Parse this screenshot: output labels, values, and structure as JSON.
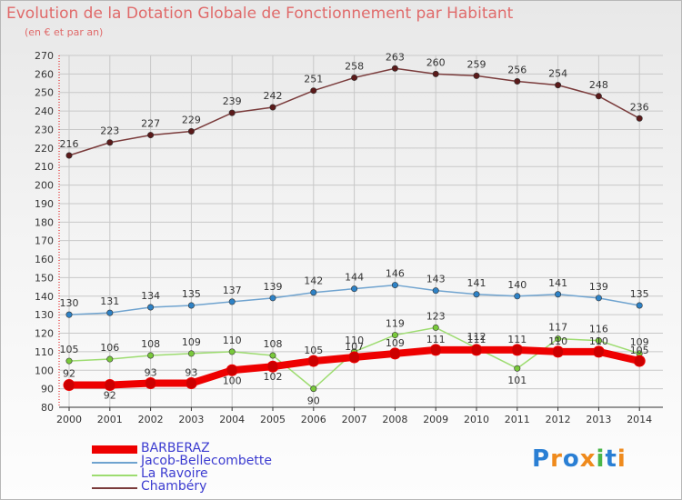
{
  "header": {
    "title": "Evolution de la Dotation Globale de Fonctionnement par Habitant",
    "subtitle": "(en € et par an)"
  },
  "logo": {
    "text": "Proxiti",
    "colors": [
      "#2a7fd4",
      "#ef8a1c",
      "#2a7fd4",
      "#ef8a1c",
      "#49b649",
      "#2a7fd4",
      "#ef8a1c"
    ]
  },
  "chart_data": {
    "type": "line",
    "x": [
      "2000",
      "2001",
      "2002",
      "2003",
      "2004",
      "2005",
      "2006",
      "2007",
      "2008",
      "2009",
      "2010",
      "2011",
      "2012",
      "2013",
      "2014"
    ],
    "ylim": [
      80,
      270
    ],
    "yticks": [
      80,
      90,
      100,
      110,
      120,
      130,
      140,
      150,
      160,
      170,
      180,
      190,
      200,
      210,
      220,
      230,
      240,
      250,
      260,
      270
    ],
    "grid": true,
    "legend_position": "bottom-left",
    "series": [
      {
        "name": "BARBERAZ",
        "color": "#ee0000",
        "marker": "#cc0000",
        "width": 8,
        "values": [
          92,
          92,
          93,
          93,
          100,
          102,
          105,
          107,
          109,
          111,
          111,
          111,
          110,
          110,
          105
        ]
      },
      {
        "name": "Jacob-Bellecombette",
        "color": "#6fa3cf",
        "marker": "#2e82c6",
        "width": 1.5,
        "values": [
          130,
          131,
          134,
          135,
          137,
          139,
          142,
          144,
          146,
          143,
          141,
          140,
          141,
          139,
          135
        ]
      },
      {
        "name": "La Ravoire",
        "color": "#9ddc70",
        "marker": "#79c93b",
        "width": 1.5,
        "values": [
          105,
          106,
          108,
          109,
          110,
          108,
          90,
          110,
          119,
          123,
          112,
          101,
          117,
          116,
          109
        ]
      },
      {
        "name": "Chambéry",
        "color": "#7a3b3b",
        "marker": "#5a1a1a",
        "width": 1.5,
        "values": [
          216,
          223,
          227,
          229,
          239,
          242,
          251,
          258,
          263,
          260,
          259,
          256,
          254,
          248,
          236
        ]
      }
    ]
  }
}
